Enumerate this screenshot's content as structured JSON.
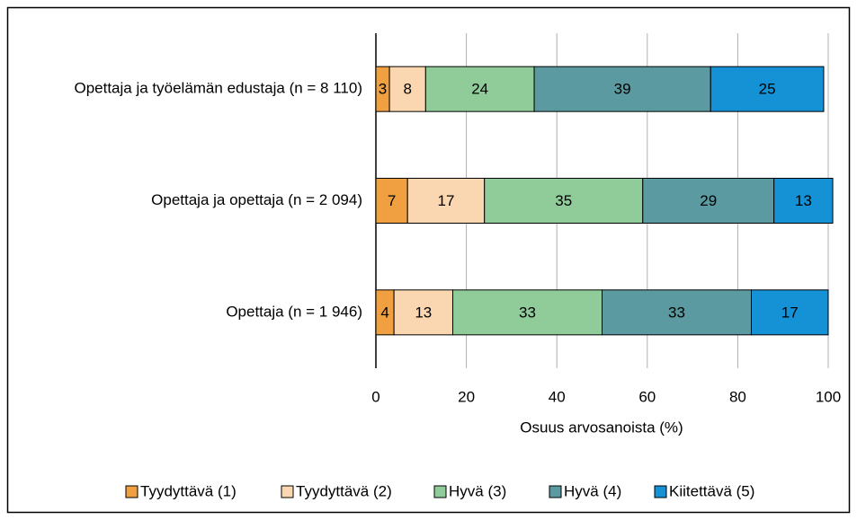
{
  "chart_data": {
    "type": "stacked_bar_horizontal",
    "x_label": "Osuus arvosanoista (%)",
    "categories": [
      "Opettaja ja työelämän edustaja (n = 8 110)",
      "Opettaja ja opettaja (n = 2 094)",
      "Opettaja (n = 1 946)"
    ],
    "series": [
      {
        "name": "Tyydyttävä (1)",
        "color": "#f0a040",
        "values": [
          3,
          7,
          4
        ]
      },
      {
        "name": "Tyydyttävä (2)",
        "color": "#fad7b0",
        "values": [
          8,
          17,
          13
        ]
      },
      {
        "name": "Hyvä (3)",
        "color": "#8fcc9a",
        "values": [
          24,
          35,
          33
        ]
      },
      {
        "name": "Hyvä (4)",
        "color": "#5b9aa0",
        "values": [
          39,
          29,
          33
        ]
      },
      {
        "name": "Kiitettävä (5)",
        "color": "#1591d6",
        "values": [
          25,
          13,
          17
        ]
      }
    ],
    "xlim": [
      0,
      100
    ],
    "xticks": [
      0,
      20,
      40,
      60,
      80,
      100
    ],
    "grid": true,
    "legend": "bottom"
  }
}
